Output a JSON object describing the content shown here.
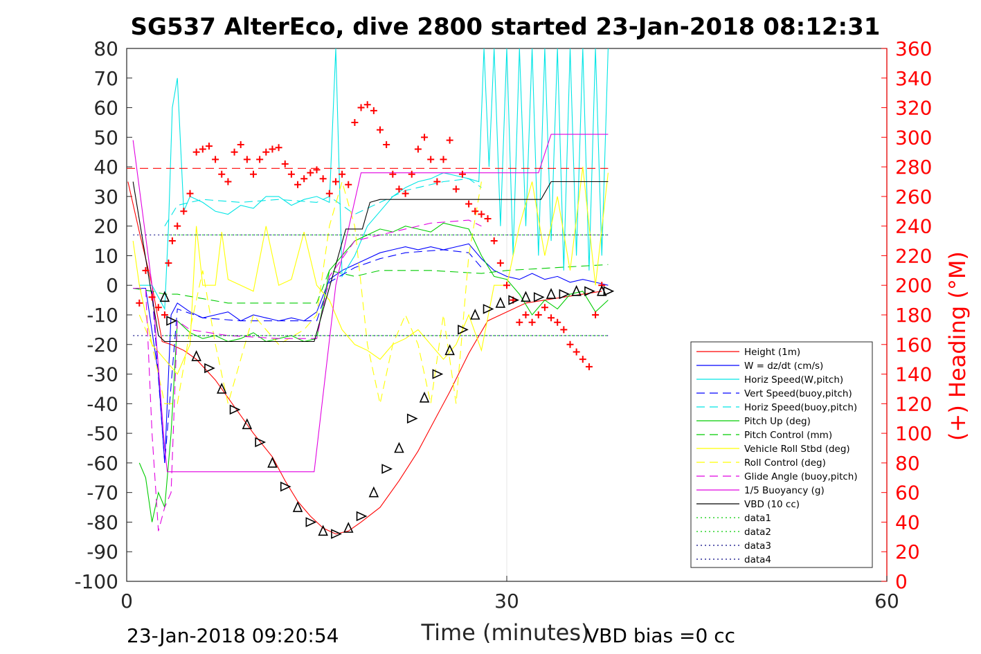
{
  "chart_data": {
    "type": "line",
    "title": "SG537 AlterEco, dive 2800 started 23-Jan-2018 08:12:31",
    "xlabel": "Time (minutes)",
    "ylabel_right": "(+) Heading (°M)",
    "footer_left": "23-Jan-2018 09:20:54",
    "footer_right": "VBD bias =0 cc",
    "xlim": [
      0,
      60
    ],
    "ylim_left": [
      -100,
      80
    ],
    "ylim_right": [
      0,
      360
    ],
    "xticks": [
      0,
      30,
      60
    ],
    "yticks_left": [
      80,
      70,
      60,
      50,
      40,
      30,
      20,
      10,
      0,
      -10,
      -20,
      -30,
      -40,
      -50,
      -60,
      -70,
      -80,
      -90,
      -100
    ],
    "yticks_right": [
      360,
      340,
      320,
      300,
      280,
      260,
      240,
      220,
      200,
      180,
      160,
      140,
      120,
      100,
      80,
      60,
      40,
      20,
      0
    ],
    "grid": "x-only at 30",
    "legend_position": "lower-right",
    "colors": {
      "red": "#ff0000",
      "blue": "#0000ff",
      "cyan": "#00e5e5",
      "green": "#00cc00",
      "yellow": "#ffff00",
      "magenta": "#e100e1",
      "black": "#000000",
      "darkblue": "#000080"
    },
    "legend": [
      {
        "name": "Height (1m)",
        "color": "#ff0000",
        "dash": "solid"
      },
      {
        "name": "W = dz/dt (cm/s)",
        "color": "#0000ff",
        "dash": "solid"
      },
      {
        "name": "Horiz Speed(W,pitch)",
        "color": "#00e5e5",
        "dash": "solid"
      },
      {
        "name": "Vert Speed(buoy,pitch)",
        "color": "#0000ff",
        "dash": "dashed"
      },
      {
        "name": "Horiz Speed(buoy,pitch)",
        "color": "#00e5e5",
        "dash": "dashed"
      },
      {
        "name": "Pitch Up (deg)",
        "color": "#00cc00",
        "dash": "solid"
      },
      {
        "name": "Pitch Control (mm)",
        "color": "#00cc00",
        "dash": "dashed"
      },
      {
        "name": "Vehicle Roll Stbd (deg)",
        "color": "#ffff00",
        "dash": "solid"
      },
      {
        "name": "Roll Control (deg)",
        "color": "#ffff00",
        "dash": "dashed"
      },
      {
        "name": "Glide Angle (buoy,pitch)",
        "color": "#e100e1",
        "dash": "dashed"
      },
      {
        "name": "1/5 Buoyancy (g)",
        "color": "#e100e1",
        "dash": "solid"
      },
      {
        "name": "VBD (10 cc)",
        "color": "#000000",
        "dash": "solid"
      },
      {
        "name": "data1",
        "color": "#00cc00",
        "dash": "dotted"
      },
      {
        "name": "data2",
        "color": "#00cc00",
        "dash": "dotted"
      },
      {
        "name": "data3",
        "color": "#000080",
        "dash": "dotted"
      },
      {
        "name": "data4",
        "color": "#000080",
        "dash": "dotted"
      }
    ],
    "series": [
      {
        "name": "Height (1m)",
        "color": "#ff0000",
        "dash": "solid",
        "axis": "left",
        "x": [
          0.1,
          1,
          2,
          2.8,
          3.5,
          4.5,
          5.5,
          7,
          8.5,
          10,
          11.5,
          12.5,
          13.5,
          14.5,
          15.5,
          16.5,
          17.5,
          18.5,
          20,
          21.5,
          23,
          24.5,
          25.5,
          27,
          28.5,
          30,
          31.5,
          33,
          34.5,
          36,
          37.5
        ],
        "values": [
          35,
          18,
          0,
          -19,
          -20,
          -22,
          -25,
          -32,
          -41,
          -50,
          -58,
          -66,
          -73,
          -78,
          -82,
          -84,
          -83,
          -80,
          -75,
          -66,
          -56,
          -44,
          -36,
          -23,
          -12,
          -9,
          -6,
          -5,
          -4,
          -3,
          -2
        ]
      },
      {
        "name": "W = dz/dt (cm/s)",
        "color": "#0000ff",
        "dash": "solid",
        "axis": "left",
        "x": [
          0.5,
          1.5,
          2.5,
          3,
          3.5,
          4,
          5,
          6,
          7,
          8,
          9,
          10,
          11,
          12,
          13,
          14,
          15,
          16,
          17,
          18,
          19,
          20,
          21,
          22,
          23,
          24,
          25,
          26,
          27,
          28,
          29,
          30,
          31,
          32,
          33,
          34,
          35,
          36,
          37,
          38
        ],
        "values": [
          -1,
          -1,
          -30,
          -60,
          -10,
          -6,
          -9,
          -11,
          -10,
          -9,
          -12,
          -10,
          -11,
          -12,
          -11,
          -12,
          -9,
          2,
          5,
          7,
          9,
          11,
          12,
          13,
          12,
          13,
          12,
          13,
          14,
          9,
          5,
          3,
          2,
          4,
          2,
          3,
          1,
          2,
          1,
          0
        ]
      },
      {
        "name": "Horiz Speed(W,pitch)",
        "color": "#00e5e5",
        "dash": "solid",
        "axis": "left",
        "x": [
          1,
          2,
          3,
          3.3,
          3.6,
          4,
          4.5,
          5,
          6,
          7,
          8,
          9,
          10,
          11,
          12,
          13,
          14,
          15,
          16,
          16.5,
          17,
          18,
          19,
          20,
          21,
          22,
          23,
          24,
          25,
          26,
          27,
          27.8,
          28.2,
          28.6,
          29,
          29.5,
          30,
          30.5,
          31,
          31.5,
          32,
          32.5,
          33,
          33.5,
          34,
          34.5,
          35,
          35.5,
          36,
          36.5,
          37,
          37.5,
          38
        ],
        "values": [
          0,
          0,
          -8,
          20,
          60,
          70,
          25,
          30,
          28,
          25,
          24,
          27,
          26,
          30,
          30,
          27,
          29,
          30,
          28,
          80,
          3,
          10,
          20,
          25,
          30,
          33,
          35,
          36,
          38,
          37,
          36,
          35,
          80,
          40,
          80,
          20,
          80,
          10,
          80,
          20,
          80,
          10,
          80,
          15,
          80,
          5,
          80,
          10,
          80,
          5,
          80,
          10,
          80
        ]
      },
      {
        "name": "Vert Speed(buoy,pitch)",
        "color": "#0000ff",
        "dash": "dashed",
        "axis": "left",
        "x": [
          0.5,
          2,
          3,
          4,
          6,
          9,
          12,
          15,
          16,
          18,
          20,
          22,
          25,
          27,
          28
        ],
        "values": [
          -1,
          -2,
          -60,
          -8,
          -11,
          -12,
          -12,
          -12,
          1,
          6,
          9,
          11,
          12,
          11,
          6
        ]
      },
      {
        "name": "Horiz Speed(buoy,pitch)",
        "color": "#00e5e5",
        "dash": "dashed",
        "axis": "left",
        "x": [
          3,
          4,
          6,
          9,
          12,
          15,
          16,
          18,
          20,
          22,
          25,
          27,
          28
        ],
        "values": [
          20,
          27,
          29,
          28,
          29,
          28,
          30,
          24,
          28,
          32,
          35,
          36,
          33
        ]
      },
      {
        "name": "Pitch Up (deg)",
        "color": "#00cc00",
        "dash": "solid",
        "axis": "left",
        "x": [
          1,
          1.5,
          2,
          2.5,
          3,
          3.5,
          4,
          5,
          6,
          7,
          8,
          9,
          10,
          11,
          12,
          13,
          14,
          15,
          16,
          17,
          18,
          19,
          20,
          21,
          22,
          23,
          24,
          25,
          26,
          27,
          28,
          29,
          30,
          31,
          32,
          33,
          34,
          35,
          36,
          37,
          38
        ],
        "values": [
          -60,
          -65,
          -80,
          -70,
          -75,
          -50,
          -12,
          -16,
          -18,
          -17,
          -19,
          -18,
          -16,
          -19,
          -18,
          -17,
          -19,
          -18,
          5,
          10,
          15,
          17,
          19,
          18,
          20,
          19,
          18,
          21,
          20,
          19,
          10,
          3,
          2,
          -3,
          -10,
          -5,
          -8,
          -3,
          -2,
          -9,
          -5
        ]
      },
      {
        "name": "Pitch Control (mm)",
        "color": "#00cc00",
        "dash": "dashed",
        "axis": "left",
        "x": [
          0.5,
          2,
          3,
          4,
          8,
          12,
          15,
          16,
          18,
          20,
          24,
          28,
          30,
          34,
          38
        ],
        "values": [
          -1,
          -2,
          -3,
          -3,
          -6,
          -6,
          -6,
          5,
          3,
          5,
          5,
          4,
          5,
          6,
          7
        ]
      },
      {
        "name": "Vehicle Roll Stbd (deg)",
        "color": "#ffff00",
        "dash": "solid",
        "axis": "left",
        "x": [
          0.5,
          1,
          2,
          3,
          4,
          5,
          5.5,
          6,
          7,
          7.5,
          8,
          9,
          10,
          11,
          12,
          13,
          14,
          15,
          16,
          17,
          18,
          19,
          20,
          21,
          22,
          23,
          24,
          25,
          26,
          27,
          28,
          29,
          30,
          31,
          32,
          33,
          34,
          35,
          36,
          37,
          38
        ],
        "values": [
          15,
          0,
          -20,
          -25,
          -30,
          -20,
          20,
          0,
          0,
          18,
          2,
          0,
          -2,
          20,
          0,
          2,
          18,
          0,
          -5,
          -15,
          -20,
          -22,
          -25,
          -20,
          -18,
          -15,
          -20,
          -25,
          -20,
          -10,
          -22,
          0,
          0,
          20,
          35,
          10,
          30,
          5,
          40,
          0,
          38
        ]
      },
      {
        "name": "Roll Control (deg)",
        "color": "#ffff00",
        "dash": "dashed",
        "axis": "left",
        "x": [
          1,
          2,
          3,
          4,
          5,
          6,
          7,
          8,
          10,
          12,
          14,
          15,
          16,
          17,
          18,
          19,
          20,
          21,
          22,
          23,
          24,
          25,
          26,
          27,
          28
        ],
        "values": [
          -10,
          -20,
          -40,
          -40,
          -15,
          5,
          -20,
          -40,
          -10,
          -20,
          -15,
          -10,
          20,
          35,
          20,
          -20,
          -40,
          -20,
          -10,
          -20,
          -40,
          -10,
          -40,
          10,
          35
        ]
      },
      {
        "name": "Glide Angle (buoy,pitch)",
        "color": "#e100e1",
        "dash": "dashed",
        "axis": "left",
        "x": [
          0.5,
          1.5,
          2,
          2.5,
          3,
          3.5,
          4,
          5,
          8,
          12,
          15,
          16,
          18,
          20,
          24,
          27,
          28
        ],
        "values": [
          -1,
          -1,
          -50,
          -83,
          -75,
          -70,
          -12,
          -15,
          -17,
          -18,
          -18,
          3,
          15,
          17,
          21,
          22,
          20
        ]
      },
      {
        "name": "1/5 Buoyancy (g)",
        "color": "#e100e1",
        "dash": "solid",
        "axis": "left",
        "x": [
          0.5,
          2,
          3,
          3.2,
          5,
          10,
          14.8,
          16.5,
          18.5,
          30,
          32.5,
          33.5,
          38
        ],
        "values": [
          49,
          0,
          -55,
          -63,
          -63,
          -63,
          -63,
          0,
          38,
          38,
          38,
          51,
          51
        ]
      },
      {
        "name": "VBD (10 cc)",
        "color": "#000000",
        "dash": "solid",
        "axis": "left",
        "x": [
          0.5,
          2.5,
          3,
          5,
          10,
          14.8,
          17.3,
          18.6,
          19.2,
          20,
          30,
          32.7,
          33.5,
          38
        ],
        "values": [
          35,
          -17,
          -19,
          -19,
          -19,
          -19,
          19,
          19,
          28,
          29,
          29,
          29,
          35,
          35
        ]
      },
      {
        "name": "data1",
        "color": "#00cc00",
        "dash": "dotted",
        "axis": "left",
        "x": [
          3,
          38
        ],
        "values": [
          17,
          17
        ]
      },
      {
        "name": "data2",
        "color": "#00cc00",
        "dash": "dotted",
        "axis": "left",
        "x": [
          3,
          38
        ],
        "values": [
          -17,
          -17
        ]
      },
      {
        "name": "data3",
        "color": "#000080",
        "dash": "dotted",
        "axis": "left",
        "x": [
          0.5,
          38
        ],
        "values": [
          17,
          17
        ]
      },
      {
        "name": "data4",
        "color": "#000080",
        "dash": "dotted",
        "axis": "left",
        "x": [
          0.5,
          38
        ],
        "values": [
          -17,
          -17
        ]
      },
      {
        "name": "Target heading",
        "color": "#ff0000",
        "dash": "dashed",
        "axis": "right",
        "x": [
          0,
          38
        ],
        "values": [
          279,
          279
        ]
      }
    ],
    "heading_markers": {
      "color": "#ff0000",
      "symbol": "+",
      "axis": "right",
      "x": [
        1,
        1.5,
        2,
        2.5,
        3,
        3.3,
        3.6,
        4,
        4.5,
        5,
        5.5,
        6,
        6.5,
        7,
        7.5,
        8,
        8.5,
        9,
        9.5,
        10,
        10.5,
        11,
        11.5,
        12,
        12.5,
        13,
        13.5,
        14,
        14.5,
        15,
        15.5,
        16,
        16.5,
        17,
        17.5,
        18,
        18.5,
        19,
        19.5,
        20,
        20.5,
        21,
        21.5,
        22,
        22.5,
        23,
        23.5,
        24,
        24.5,
        25,
        25.5,
        26,
        26.5,
        27,
        27.5,
        28,
        28.5,
        29,
        29.5,
        30,
        30.5,
        31,
        31.5,
        32,
        32.5,
        33,
        33.5,
        34,
        34.5,
        35,
        35.5,
        36,
        36.5,
        37,
        37.5
      ],
      "values": [
        188,
        210,
        192,
        185,
        180,
        215,
        230,
        240,
        250,
        262,
        290,
        292,
        294,
        285,
        275,
        270,
        290,
        295,
        285,
        275,
        285,
        290,
        292,
        293,
        282,
        275,
        268,
        272,
        276,
        278,
        272,
        262,
        270,
        275,
        268,
        310,
        320,
        322,
        318,
        305,
        295,
        275,
        265,
        262,
        275,
        292,
        300,
        285,
        270,
        285,
        298,
        265,
        275,
        255,
        250,
        248,
        245,
        230,
        215,
        200,
        190,
        175,
        180,
        175,
        180,
        185,
        178,
        175,
        170,
        160,
        155,
        150,
        145,
        180,
        200
      ]
    },
    "depth_markers": {
      "color": "#000000",
      "symbol": "triangle",
      "axis": "left",
      "x": [
        3,
        3.5,
        5.5,
        6.5,
        7.5,
        8.5,
        9.5,
        10.5,
        11.5,
        12.5,
        13.5,
        14.5,
        15.5,
        16.5,
        17.5,
        18.5,
        19.5,
        20.5,
        21.5,
        22.5,
        23.5,
        24.5,
        25.5,
        26.5,
        27.5,
        28.5,
        29.5,
        30.5,
        31.5,
        32.5,
        33.5,
        34.5,
        35.5,
        36.5,
        37.5,
        38
      ],
      "values": [
        -4,
        -12,
        -24,
        -28,
        -35,
        -42,
        -47,
        -53,
        -60,
        -68,
        -75,
        -80,
        -83,
        -84,
        -82,
        -78,
        -70,
        -62,
        -55,
        -45,
        -38,
        -30,
        -22,
        -15,
        -10,
        -8,
        -6,
        -5,
        -4,
        -4,
        -3,
        -3,
        -2,
        -2,
        -2,
        -2
      ]
    }
  }
}
